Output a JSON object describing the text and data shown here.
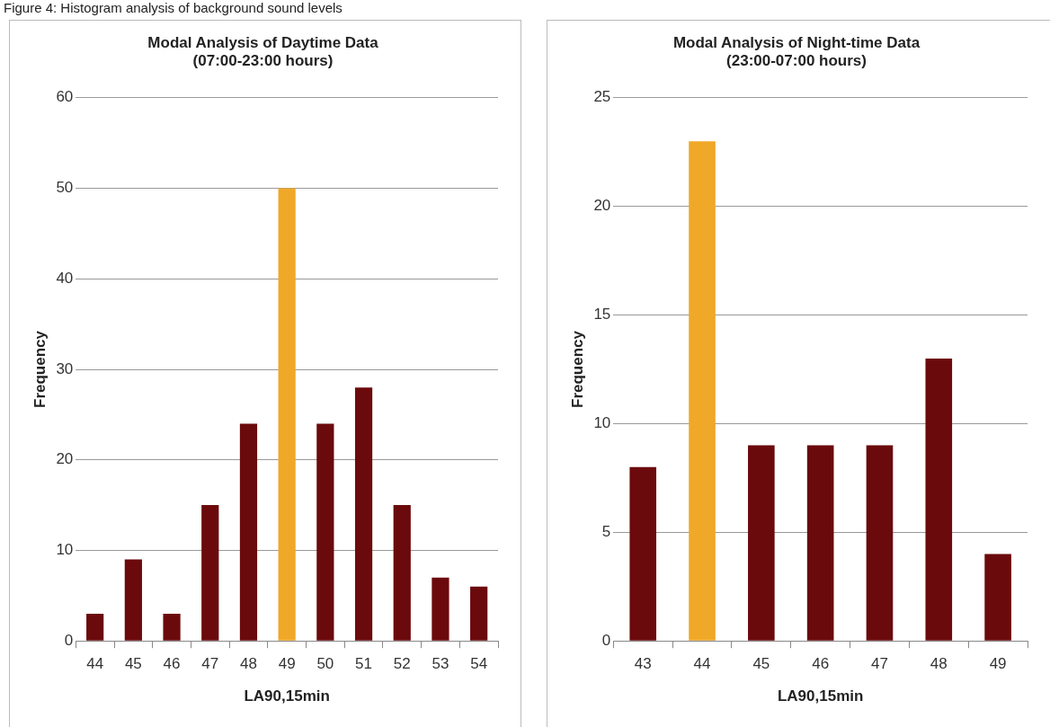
{
  "chart_data": [
    {
      "type": "bar",
      "title": "Modal Analysis of Daytime Data\n(07:00-23:00 hours)",
      "xlabel": "LA90,15min",
      "ylabel": "Frequency",
      "annotations": [
        "Figure 4: Histogram analysis of background sound levels"
      ],
      "categories": [
        "44",
        "45",
        "46",
        "47",
        "48",
        "49",
        "50",
        "51",
        "52",
        "53",
        "54"
      ],
      "values": [
        3,
        9,
        3,
        15,
        24,
        50,
        24,
        28,
        15,
        7,
        6
      ],
      "colors": [
        "#6b0a0c",
        "#6b0a0c",
        "#6b0a0c",
        "#6b0a0c",
        "#6b0a0c",
        "#f0a828",
        "#6b0a0c",
        "#6b0a0c",
        "#6b0a0c",
        "#6b0a0c",
        "#6b0a0c"
      ],
      "ylim": [
        0,
        60
      ],
      "yticks": [
        0,
        10,
        20,
        30,
        40,
        50,
        60
      ],
      "grid": "y",
      "legend": false
    },
    {
      "type": "bar",
      "title": "Modal Analysis of Night-time Data\n(23:00-07:00 hours)",
      "xlabel": "LA90,15min",
      "ylabel": "Frequency",
      "categories": [
        "43",
        "44",
        "45",
        "46",
        "47",
        "48",
        "49"
      ],
      "values": [
        8,
        23,
        9,
        9,
        9,
        13,
        4
      ],
      "colors": [
        "#6b0a0c",
        "#f0a828",
        "#6b0a0c",
        "#6b0a0c",
        "#6b0a0c",
        "#6b0a0c",
        "#6b0a0c"
      ],
      "ylim": [
        0,
        25
      ],
      "yticks": [
        0,
        5,
        10,
        15,
        20,
        25
      ],
      "grid": "y",
      "legend": false
    }
  ]
}
